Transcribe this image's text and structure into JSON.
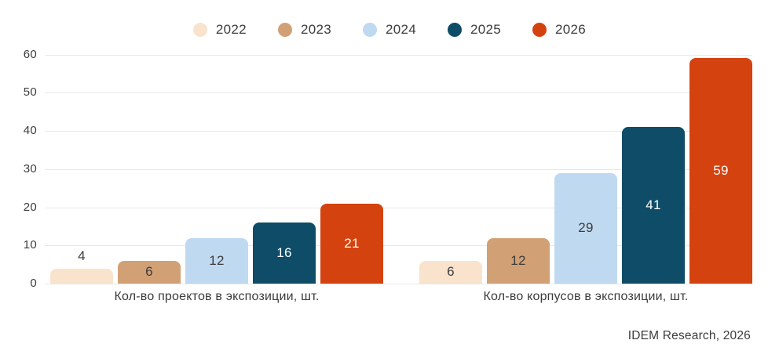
{
  "chart_data": {
    "type": "bar",
    "categories": [
      "Кол-во проектов в экспозиции, шт.",
      "Кол-во корпусов в экспозиции, шт."
    ],
    "series": [
      {
        "name": "2022",
        "color": "#FAE3CD",
        "label_color": "#3c3c3c",
        "values": [
          4,
          6
        ]
      },
      {
        "name": "2023",
        "color": "#D2A075",
        "label_color": "#3c3c3c",
        "values": [
          6,
          12
        ]
      },
      {
        "name": "2024",
        "color": "#BFD9F1",
        "label_color": "#3c3c3c",
        "values": [
          12,
          29
        ]
      },
      {
        "name": "2025",
        "color": "#0E4C67",
        "label_color": "#FFFFFF",
        "values": [
          16,
          41
        ]
      },
      {
        "name": "2026",
        "color": "#D4430F",
        "label_color": "#FFFFFF",
        "values": [
          21,
          59
        ]
      }
    ],
    "title": "",
    "xlabel": "",
    "ylabel": "",
    "ylim": [
      0,
      60
    ],
    "yticks": [
      0,
      10,
      20,
      30,
      40,
      50,
      60
    ],
    "grid": true,
    "legend_position": "top",
    "value_labels": true
  },
  "footer": {
    "attribution": "IDEM Research, 2026"
  },
  "colors": {
    "background": "#FFFFFF",
    "gridline": "#E8E8E8",
    "text": "#3C3C3C"
  }
}
